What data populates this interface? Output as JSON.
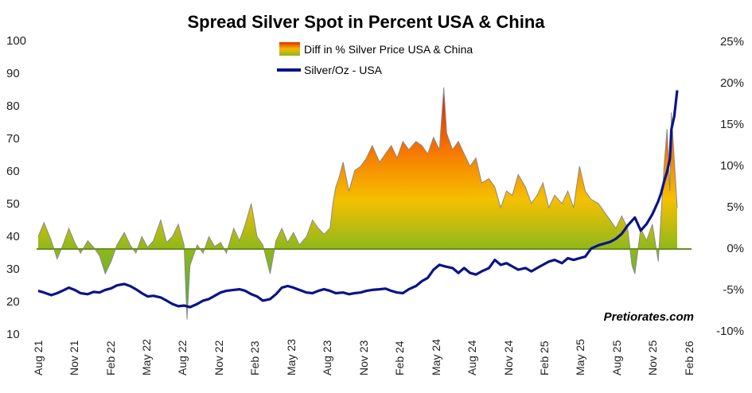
{
  "chart_data": {
    "type": "area+line",
    "title": "Spread Silver Spot in Percent USA & China",
    "watermark": "Pretiorates.com",
    "legend": {
      "diff_label": "Diff in % Silver Price USA & China",
      "silver_label": "Silver/Oz - USA"
    },
    "left_axis": {
      "range": [
        10,
        100
      ],
      "ticks": [
        "100",
        "90",
        "80",
        "70",
        "60",
        "50",
        "40",
        "30",
        "20",
        "10"
      ]
    },
    "right_axis": {
      "range": [
        -10,
        25
      ],
      "ticks": [
        "25%",
        "20%",
        "15%",
        "10%",
        "5%",
        "0%",
        "-5%",
        "-10%"
      ]
    },
    "x_ticks": [
      "Aug 21",
      "Nov 21",
      "Feb 22",
      "May 22",
      "Aug 22",
      "Nov 22",
      "Feb 23",
      "May 23",
      "Aug 23",
      "Nov 23",
      "Feb 24",
      "May 24",
      "Aug 24",
      "Nov 24",
      "Feb 25",
      "May 25",
      "Aug 25",
      "Nov 25",
      "Feb 26"
    ],
    "time_range": [
      2021.58,
      2026.08
    ],
    "series": [
      {
        "name": "Diff in % Silver Price USA & China",
        "axis": "right",
        "unit": "%",
        "x": [
          2021.58,
          2021.62,
          2021.67,
          2021.71,
          2021.75,
          2021.79,
          2021.83,
          2021.87,
          2021.92,
          2021.96,
          2022.0,
          2022.04,
          2022.08,
          2022.12,
          2022.17,
          2022.21,
          2022.25,
          2022.29,
          2022.33,
          2022.37,
          2022.42,
          2022.46,
          2022.5,
          2022.54,
          2022.58,
          2022.6,
          2022.62,
          2022.67,
          2022.71,
          2022.75,
          2022.79,
          2022.83,
          2022.87,
          2022.92,
          2022.96,
          2023.0,
          2023.04,
          2023.08,
          2023.12,
          2023.17,
          2023.21,
          2023.25,
          2023.29,
          2023.33,
          2023.37,
          2023.42,
          2023.46,
          2023.5,
          2023.54,
          2023.58,
          2023.6,
          2023.62,
          2023.64,
          2023.67,
          2023.71,
          2023.75,
          2023.79,
          2023.83,
          2023.87,
          2023.92,
          2023.96,
          2024.0,
          2024.04,
          2024.08,
          2024.12,
          2024.17,
          2024.21,
          2024.25,
          2024.29,
          2024.33,
          2024.36,
          2024.38,
          2024.42,
          2024.46,
          2024.5,
          2024.54,
          2024.58,
          2024.62,
          2024.67,
          2024.71,
          2024.75,
          2024.79,
          2024.83,
          2024.87,
          2024.92,
          2024.96,
          2025.0,
          2025.04,
          2025.08,
          2025.12,
          2025.17,
          2025.21,
          2025.25,
          2025.29,
          2025.33,
          2025.37,
          2025.42,
          2025.46,
          2025.5,
          2025.54,
          2025.58,
          2025.62,
          2025.65,
          2025.67,
          2025.71,
          2025.75,
          2025.79,
          2025.83,
          2025.87,
          2025.89,
          2025.91,
          2025.92,
          2025.96
        ],
        "values": [
          1.5,
          3.2,
          1.0,
          -1.2,
          0.5,
          2.5,
          0.8,
          -0.5,
          1.0,
          0.2,
          -0.8,
          -3.0,
          -1.5,
          0.5,
          2.0,
          0.5,
          -0.5,
          1.5,
          0.2,
          1.0,
          3.5,
          0.8,
          1.5,
          3.0,
          0.5,
          -8.5,
          -2.0,
          0.5,
          -0.5,
          1.5,
          0.3,
          0.8,
          -0.5,
          2.5,
          1.0,
          3.0,
          5.5,
          1.5,
          0.5,
          -3.0,
          1.0,
          2.5,
          0.8,
          2.0,
          0.5,
          1.5,
          3.5,
          2.5,
          1.8,
          2.5,
          5.5,
          7.5,
          8.5,
          10.5,
          7.0,
          9.5,
          10.0,
          11.0,
          12.5,
          10.5,
          11.5,
          12.5,
          11.0,
          13.0,
          12.0,
          13.0,
          12.5,
          11.5,
          13.5,
          12.0,
          19.5,
          14.0,
          12.0,
          13.0,
          11.5,
          10.0,
          11.0,
          8.0,
          8.5,
          7.5,
          5.0,
          7.0,
          6.5,
          9.0,
          7.5,
          5.5,
          6.5,
          8.0,
          5.0,
          6.5,
          5.5,
          7.0,
          5.0,
          10.0,
          7.0,
          6.0,
          5.5,
          4.5,
          3.5,
          2.5,
          4.0,
          2.5,
          -2.0,
          -3.0,
          2.5,
          1.0,
          3.0,
          -1.5,
          10.0,
          14.5,
          7.0,
          16.5,
          5.0
        ]
      },
      {
        "name": "Silver/Oz - USA",
        "axis": "left",
        "unit": "USD/oz",
        "x": [
          2021.58,
          2021.62,
          2021.67,
          2021.71,
          2021.75,
          2021.79,
          2021.83,
          2021.87,
          2021.92,
          2021.96,
          2022.0,
          2022.04,
          2022.08,
          2022.12,
          2022.17,
          2022.21,
          2022.25,
          2022.29,
          2022.33,
          2022.37,
          2022.42,
          2022.46,
          2022.5,
          2022.54,
          2022.58,
          2022.62,
          2022.67,
          2022.71,
          2022.75,
          2022.79,
          2022.83,
          2022.87,
          2022.92,
          2022.96,
          2023.0,
          2023.04,
          2023.08,
          2023.12,
          2023.17,
          2023.21,
          2023.25,
          2023.29,
          2023.33,
          2023.37,
          2023.42,
          2023.46,
          2023.5,
          2023.54,
          2023.58,
          2023.62,
          2023.67,
          2023.71,
          2023.75,
          2023.79,
          2023.83,
          2023.87,
          2023.92,
          2023.96,
          2024.0,
          2024.04,
          2024.08,
          2024.12,
          2024.17,
          2024.21,
          2024.25,
          2024.29,
          2024.33,
          2024.37,
          2024.42,
          2024.46,
          2024.5,
          2024.54,
          2024.58,
          2024.62,
          2024.67,
          2024.71,
          2024.75,
          2024.79,
          2024.83,
          2024.87,
          2024.92,
          2024.96,
          2025.0,
          2025.04,
          2025.08,
          2025.12,
          2025.17,
          2025.21,
          2025.25,
          2025.29,
          2025.33,
          2025.37,
          2025.42,
          2025.46,
          2025.5,
          2025.54,
          2025.58,
          2025.62,
          2025.67,
          2025.71,
          2025.75,
          2025.79,
          2025.83,
          2025.85,
          2025.87,
          2025.89,
          2025.91,
          2025.92,
          2025.94,
          2025.96
        ],
        "values": [
          23.5,
          23.0,
          22.2,
          22.8,
          23.6,
          24.5,
          23.8,
          22.8,
          22.5,
          23.2,
          23.0,
          23.8,
          24.3,
          25.2,
          25.6,
          25.0,
          24.0,
          22.8,
          21.8,
          22.0,
          21.5,
          20.5,
          19.5,
          18.8,
          19.0,
          18.5,
          19.5,
          20.5,
          21.0,
          22.0,
          23.0,
          23.5,
          23.8,
          24.0,
          23.5,
          22.5,
          21.8,
          20.5,
          21.0,
          22.5,
          24.5,
          25.0,
          24.5,
          23.8,
          23.0,
          22.8,
          23.5,
          24.0,
          23.5,
          22.8,
          23.0,
          22.5,
          22.8,
          23.0,
          23.5,
          23.8,
          24.0,
          24.2,
          23.5,
          23.0,
          22.8,
          24.0,
          25.0,
          26.5,
          27.5,
          30.0,
          31.5,
          31.0,
          30.5,
          29.0,
          30.5,
          29.0,
          28.5,
          29.5,
          30.5,
          33.0,
          31.5,
          32.0,
          31.0,
          30.0,
          30.5,
          29.5,
          30.5,
          31.5,
          32.5,
          33.0,
          32.0,
          33.5,
          33.0,
          33.5,
          34.0,
          36.5,
          37.5,
          38.0,
          38.5,
          39.5,
          41.0,
          43.5,
          46.0,
          42.0,
          44.0,
          47.0,
          51.0,
          53.5,
          57.0,
          60.0,
          64.0,
          73.0,
          77.0,
          85.0
        ]
      }
    ]
  }
}
